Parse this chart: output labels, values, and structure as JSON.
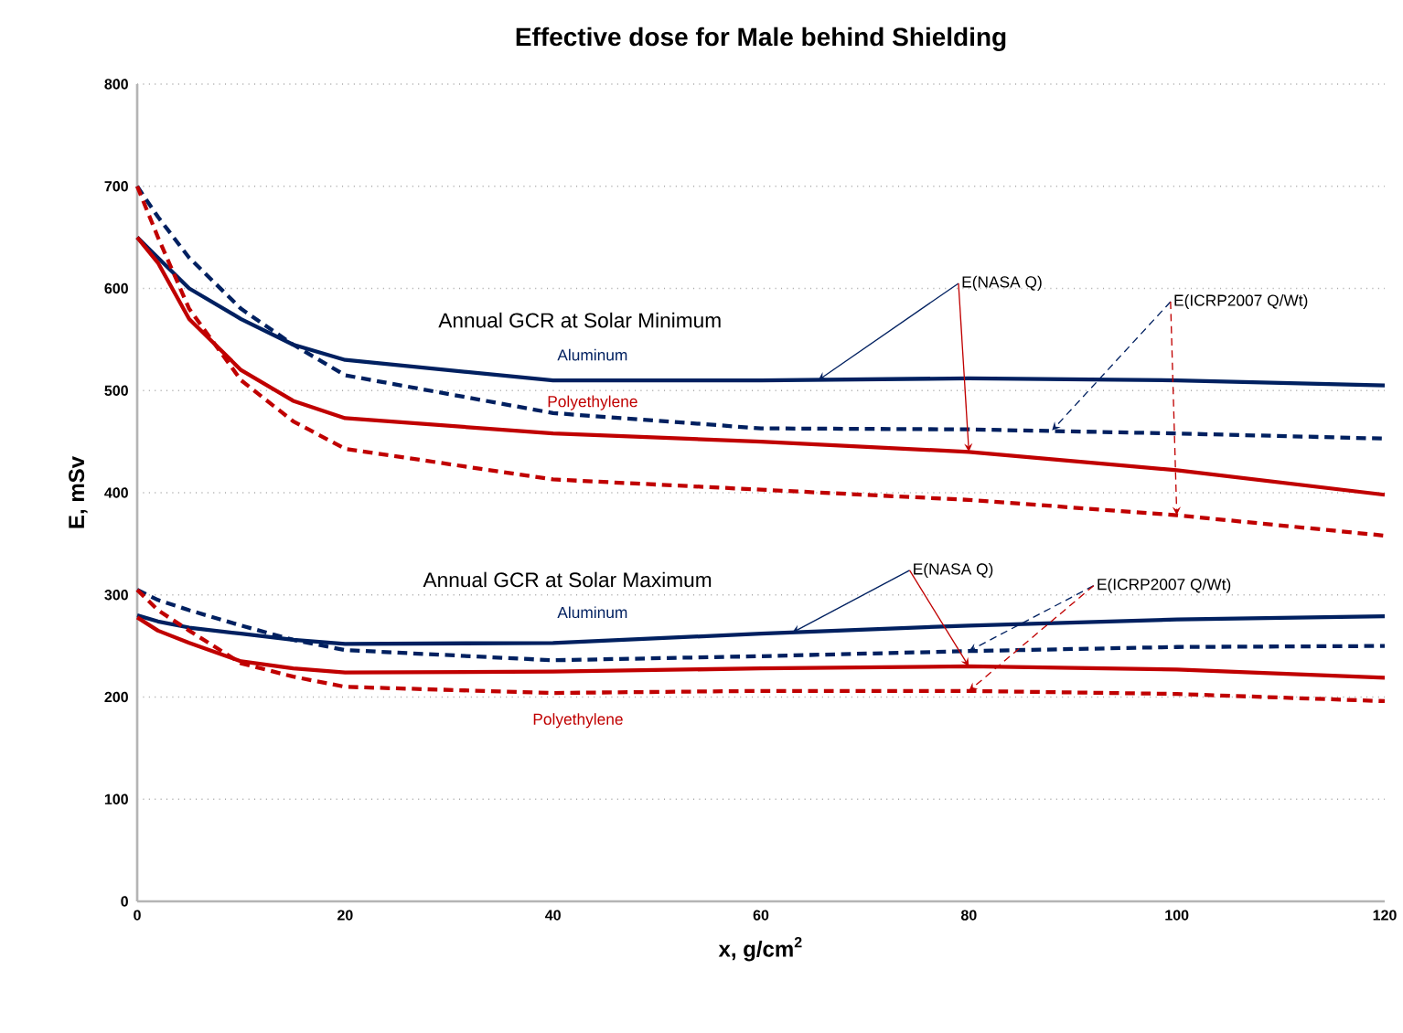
{
  "chart_data": {
    "type": "line",
    "title": "Effective dose for Male behind Shielding",
    "xlabel": "x, g/cm$^{2}$",
    "ylabel": "E, mSv",
    "x": [
      0,
      2,
      5,
      10,
      15,
      20,
      40,
      60,
      80,
      100,
      120
    ],
    "series": [
      {
        "color": "#002060",
        "line_style": "solid",
        "values": [
          650,
          630,
          600,
          570,
          545,
          530,
          510,
          510,
          512,
          510,
          505
        ]
      },
      {
        "color": "#002060",
        "line_style": "dashed",
        "values": [
          700,
          670,
          630,
          580,
          545,
          515,
          478,
          463,
          462,
          458,
          453
        ]
      },
      {
        "color": "#c00000",
        "line_style": "solid",
        "values": [
          650,
          625,
          570,
          520,
          490,
          473,
          458,
          450,
          440,
          422,
          398
        ]
      },
      {
        "color": "#c00000",
        "line_style": "dashed",
        "values": [
          700,
          650,
          580,
          510,
          470,
          443,
          413,
          403,
          393,
          378,
          358
        ]
      },
      {
        "color": "#002060",
        "line_style": "solid",
        "values": [
          280,
          274,
          268,
          262,
          256,
          252,
          253,
          262,
          270,
          276,
          279
        ]
      },
      {
        "color": "#002060",
        "line_style": "dashed",
        "values": [
          305,
          295,
          285,
          270,
          256,
          246,
          236,
          240,
          245,
          249,
          250
        ]
      },
      {
        "color": "#c00000",
        "line_style": "solid",
        "values": [
          278,
          265,
          253,
          235,
          228,
          224,
          225,
          228,
          230,
          227,
          219
        ]
      },
      {
        "color": "#c00000",
        "line_style": "dashed",
        "values": [
          305,
          285,
          265,
          233,
          220,
          210,
          204,
          206,
          206,
          203,
          196
        ]
      }
    ],
    "xlim": [
      0,
      120
    ],
    "ylim": [
      0,
      800
    ],
    "xticks": [
      0,
      20,
      40,
      60,
      80,
      100,
      120
    ],
    "yticks": [
      0,
      100,
      200,
      300,
      400,
      500,
      600,
      700,
      800
    ],
    "grid": "y",
    "annotations": [
      "Annual GCR at Solar Minimum",
      "Aluminum",
      "Polyethylene",
      {
        "text": "E(NASA Q)",
        "x": 65.5,
        "y": 510
      },
      {
        "text": "E(ICRP2007 Q/Wt)",
        "x": 88,
        "y": 461
      },
      "Annual GCR at Solar Maximum",
      "Aluminum",
      "Polyethylene",
      {
        "text": "E(NASA Q)",
        "x": 63,
        "y": 263
      },
      {
        "text": "E(ICRP2007 Q/Wt)",
        "x": 80,
        "y": 245
      }
    ]
  }
}
